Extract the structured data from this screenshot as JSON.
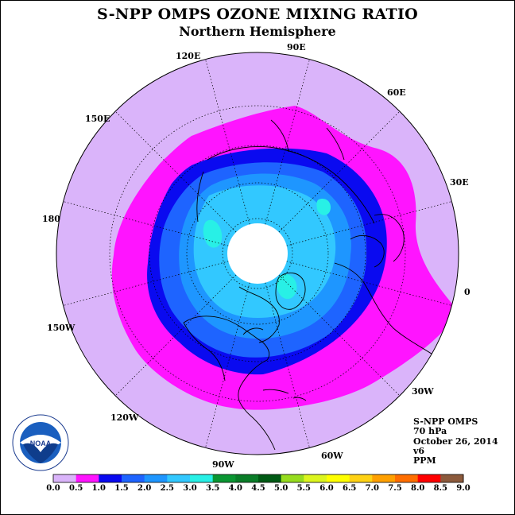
{
  "title": "S-NPP OMPS OZONE MIXING RATIO",
  "subtitle": "Northern Hemisphere",
  "longitude_labels": [
    "90E",
    "60E",
    "30E",
    "0",
    "30W",
    "60W",
    "90W",
    "120W",
    "150W",
    "180",
    "150E",
    "120E"
  ],
  "info": {
    "instrument": "S-NPP OMPS",
    "level": "70 hPa",
    "date": "October 26, 2014",
    "version": "v6",
    "units": "PPM"
  },
  "logo": {
    "name": "NOAA"
  },
  "colorbar": {
    "ticks": [
      "0.0",
      "0.5",
      "1.0",
      "1.5",
      "2.0",
      "2.5",
      "3.0",
      "3.5",
      "4.0",
      "4.5",
      "5.0",
      "5.5",
      "6.0",
      "6.5",
      "7.0",
      "7.5",
      "8.0",
      "8.5",
      "9.0"
    ],
    "colors": [
      "#c08cf0",
      "#dab4fa",
      "#ff14ff",
      "#0a0af0",
      "#1e64ff",
      "#1e96ff",
      "#32c8ff",
      "#28f0e6",
      "#0a9632",
      "#0a7d28",
      "#005a14",
      "#96dc1e",
      "#dcf51e",
      "#ffff00",
      "#ffd214",
      "#ffa000",
      "#ff6e00",
      "#ff0000",
      "#8c5a3c"
    ]
  },
  "map": {
    "center_lon": 0,
    "projection": "north-polar-stereographic",
    "ozone_band_colors": {
      "0.5-1.0": "#dab4fa",
      "1.0-1.5": "#ff14ff",
      "1.5-2.0": "#0a0af0",
      "2.0-2.5": "#1e64ff",
      "2.5-3.0": "#1e96ff",
      "3.0-3.5": "#32c8ff",
      "3.5-4.0": "#28f0e6",
      "no_data_pole": "#ffffff"
    }
  }
}
